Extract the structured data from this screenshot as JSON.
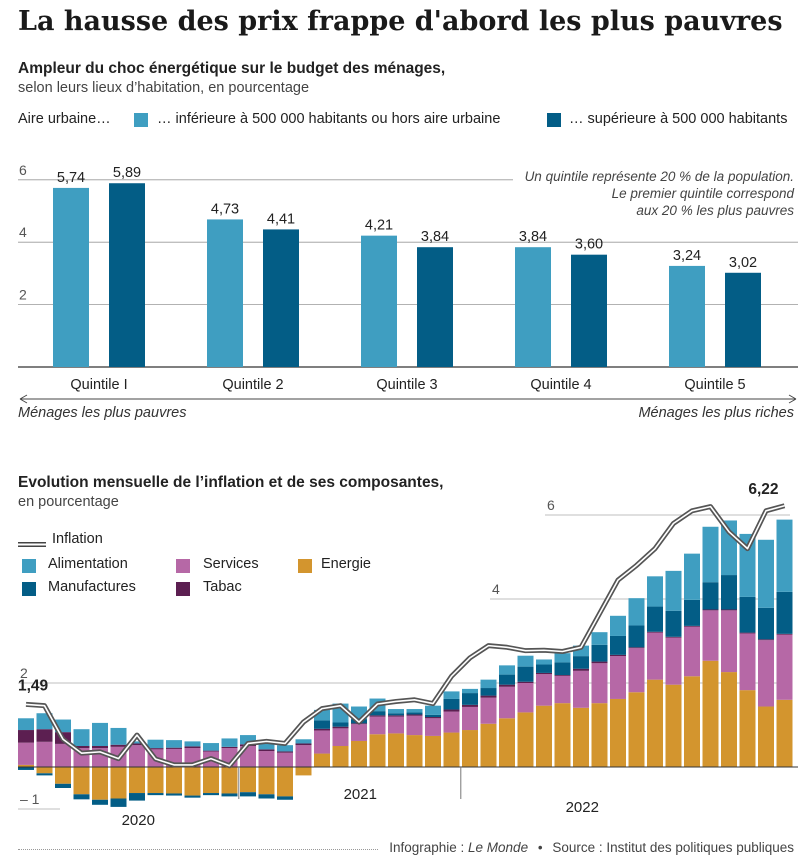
{
  "title": "La hausse des prix frappe d'abord les plus pauvres",
  "chart1": {
    "heading": "Ampleur du choc énergétique sur le budget des ménages,",
    "subheading": "selon leurs lieux d’habitation, en pourcentage",
    "legend_prefix": "Aire urbaine…",
    "legend_a": "… inférieure à 500 000 habitants ou hors aire urbaine",
    "legend_b": "… supérieure à 500 000 habitants",
    "note1": "Un quintile représente 20 % de la population.",
    "note2": "Le premier quintile correspond",
    "note3": "aux 20 % les plus pauvres",
    "left_caption": "Ménages les plus pauvres",
    "right_caption": "Ménages les plus riches"
  },
  "chart2": {
    "heading": "Evolution mensuelle de l’inflation et de ses composantes,",
    "subheading": "en pourcentage",
    "legend": {
      "inflation": "Inflation",
      "alimentation": "Alimentation",
      "services": "Services",
      "energie": "Energie",
      "manufactures": "Manufactures",
      "tabac": "Tabac"
    },
    "start_label": "1,49",
    "end_label": "6,22"
  },
  "footer": {
    "infographie_label": "Infographie : ",
    "infographie_name": "Le Monde",
    "bullet": "•",
    "source": "Source : Institut des politiques publiques"
  },
  "colors": {
    "light_blue": "#3f9ec1",
    "dark_blue": "#035d86",
    "services": "#b668a6",
    "energie": "#d3952e",
    "tabac": "#5c1f51",
    "inflation_line": "#8a8a8a"
  },
  "chart_data": [
    {
      "type": "bar",
      "categories": [
        "Quintile I",
        "Quintile 2",
        "Quintile 3",
        "Quintile 4",
        "Quintile 5"
      ],
      "series": [
        {
          "name": "… inférieure à 500 000 habitants ou hors aire urbaine",
          "values": [
            5.74,
            4.73,
            4.21,
            3.84,
            3.24
          ],
          "labels": [
            "5,74",
            "4,73",
            "4,21",
            "3,84",
            "3,24"
          ]
        },
        {
          "name": "… supérieure à 500 000 habitants",
          "values": [
            5.89,
            4.41,
            3.84,
            3.6,
            3.02
          ],
          "labels": [
            "5,89",
            "4,41",
            "3,84",
            "3,60",
            "3,02"
          ]
        }
      ],
      "y_ticks": [
        2,
        4,
        6
      ],
      "ylim": [
        0,
        6.5
      ]
    },
    {
      "type": "bar",
      "stacked": true,
      "x_labels": [
        "2020",
        "2021",
        "2022"
      ],
      "y_ticks": [
        {
          "value": -1,
          "label": "– 1"
        },
        {
          "value": 2,
          "label": "2"
        },
        {
          "value": 4,
          "label": "4"
        },
        {
          "value": 6,
          "label": "6"
        }
      ],
      "ylim": [
        -1.25,
        6.25
      ],
      "series": [
        {
          "name": "Energie",
          "values": [
            0.05,
            -0.15,
            -0.4,
            -0.65,
            -0.78,
            -0.75,
            -0.62,
            -0.62,
            -0.63,
            -0.68,
            -0.62,
            -0.63,
            -0.6,
            -0.65,
            -0.7,
            -0.2,
            0.32,
            0.5,
            0.62,
            0.78,
            0.8,
            0.76,
            0.74,
            0.82,
            0.88,
            1.03,
            1.16,
            1.3,
            1.46,
            1.52,
            1.41,
            1.52,
            1.62,
            1.78,
            2.08,
            1.96,
            2.16,
            2.53,
            2.26,
            1.83,
            1.44,
            1.6
          ]
        },
        {
          "name": "Services",
          "values": [
            0.53,
            0.6,
            0.55,
            0.45,
            0.45,
            0.48,
            0.52,
            0.42,
            0.43,
            0.45,
            0.37,
            0.45,
            0.5,
            0.38,
            0.34,
            0.52,
            0.55,
            0.42,
            0.4,
            0.42,
            0.4,
            0.46,
            0.42,
            0.5,
            0.55,
            0.62,
            0.75,
            0.7,
            0.75,
            0.65,
            0.88,
            0.95,
            1.02,
            1.05,
            1.12,
            1.12,
            1.18,
            1.2,
            1.47,
            1.35,
            1.58,
            1.55
          ]
        },
        {
          "name": "Tabac",
          "values": [
            0.3,
            0.3,
            0.28,
            0.05,
            0.05,
            0.05,
            0.04,
            0.03,
            0.03,
            0.04,
            0.02,
            0.03,
            0.04,
            0.04,
            0.03,
            0.04,
            0.04,
            0.04,
            0.02,
            0.03,
            0.03,
            0.03,
            0.03,
            0.05,
            0.05,
            0.05,
            0.05,
            0.03,
            0.03,
            0.02,
            0.05,
            0.04,
            0.03,
            0.02,
            0.02,
            0.02,
            0.02,
            0.02,
            0.02,
            0.02,
            0.02,
            0.02
          ]
        },
        {
          "name": "Manufactures",
          "values": [
            -0.07,
            -0.05,
            -0.1,
            -0.12,
            -0.12,
            -0.2,
            -0.18,
            -0.05,
            -0.05,
            -0.05,
            -0.05,
            -0.07,
            -0.1,
            -0.1,
            -0.08,
            0.0,
            0.2,
            0.1,
            0.1,
            0.1,
            0.05,
            0.05,
            0.05,
            0.25,
            0.28,
            0.18,
            0.24,
            0.36,
            0.2,
            0.3,
            0.3,
            0.4,
            0.45,
            0.52,
            0.6,
            0.62,
            0.62,
            0.65,
            0.82,
            0.85,
            0.75,
            1.0
          ]
        },
        {
          "name": "Alimentation",
          "values": [
            0.28,
            0.38,
            0.3,
            0.4,
            0.55,
            0.4,
            0.05,
            0.2,
            0.18,
            0.12,
            0.18,
            0.2,
            0.22,
            0.14,
            0.15,
            0.1,
            0.25,
            0.45,
            0.3,
            0.3,
            0.1,
            0.08,
            0.22,
            0.18,
            0.1,
            0.2,
            0.22,
            0.26,
            0.12,
            0.22,
            0.25,
            0.3,
            0.48,
            0.65,
            0.72,
            0.95,
            1.1,
            1.32,
            1.3,
            1.5,
            1.62,
            1.72
          ]
        }
      ],
      "inflation": [
        1.49,
        1.46,
        0.66,
        0.33,
        0.36,
        0.2,
        0.76,
        0.19,
        0.05,
        0.05,
        0.2,
        0.03,
        0.56,
        0.61,
        0.56,
        1.07,
        1.39,
        1.46,
        1.07,
        1.5,
        1.56,
        1.6,
        1.51,
        2.16,
        2.6,
        2.89,
        2.85,
        2.77,
        2.78,
        2.75,
        2.85,
        3.65,
        4.45,
        4.8,
        5.2,
        5.8,
        6.1,
        6.2,
        5.6,
        5.2,
        6.1,
        6.22
      ],
      "inflation_labels": {
        "first": "1,49",
        "last": "6,22"
      }
    }
  ]
}
